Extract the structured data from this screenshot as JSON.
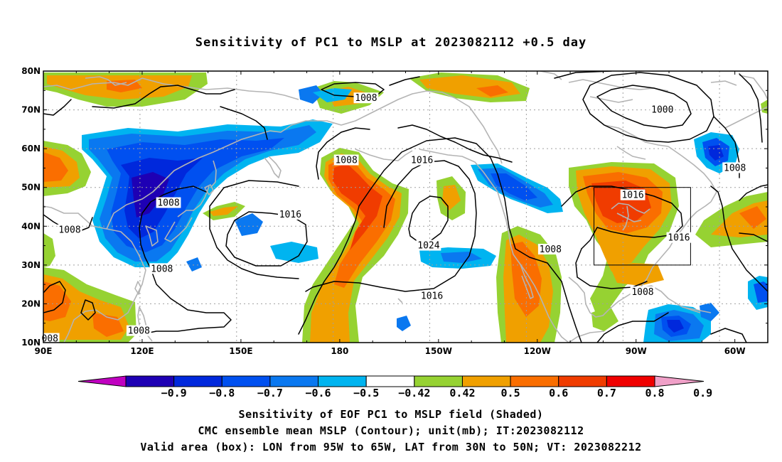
{
  "title": "Sensitivity of PC1 to MSLP at 2023082112 +0.5 day",
  "map": {
    "lon_ticks": [
      "90E",
      "120E",
      "150E",
      "180",
      "150W",
      "120W",
      "90W",
      "60W"
    ],
    "lat_ticks": [
      "80N",
      "70N",
      "60N",
      "50N",
      "40N",
      "30N",
      "20N",
      "10N"
    ],
    "contour_labels": [
      {
        "label": "1008",
        "lon": -172,
        "lat": 73
      },
      {
        "label": "1000",
        "lon": -82,
        "lat": 70
      },
      {
        "label": "1008",
        "lon": -178,
        "lat": 57
      },
      {
        "label": "1016",
        "lon": -155,
        "lat": 57
      },
      {
        "label": "1008",
        "lon": -60,
        "lat": 55
      },
      {
        "label": "1008",
        "lon": 128,
        "lat": 46
      },
      {
        "label": "1016",
        "lon": -91,
        "lat": 48
      },
      {
        "label": "1016",
        "lon": 165,
        "lat": 43
      },
      {
        "label": "1008",
        "lon": 98,
        "lat": 39
      },
      {
        "label": "1024",
        "lon": -153,
        "lat": 35
      },
      {
        "label": "1016",
        "lon": -77,
        "lat": 37
      },
      {
        "label": "1008",
        "lon": -116,
        "lat": 34
      },
      {
        "label": "1008",
        "lon": 126,
        "lat": 29
      },
      {
        "label": "1008",
        "lon": -88,
        "lat": 23
      },
      {
        "label": "1016",
        "lon": -152,
        "lat": 22
      },
      {
        "label": "1008",
        "lon": 119,
        "lat": 13
      },
      {
        "label": "008",
        "lon": 92,
        "lat": 11
      }
    ],
    "valid_box": {
      "lon_west": -95,
      "lon_east": -65,
      "lat_south": 30,
      "lat_north": 50
    },
    "colors": {
      "land_outline": "#b4b4b4",
      "contour": "#000000",
      "grid": "#a0a0a0"
    }
  },
  "colorbar": {
    "labels": [
      "−0.9",
      "−0.8",
      "−0.7",
      "−0.6",
      "−0.5",
      "−0.42",
      "0.42",
      "0.5",
      "0.6",
      "0.7",
      "0.8",
      "0.9"
    ],
    "colors": [
      "#c000c0",
      "#1e00b4",
      "#0028dc",
      "#0050f0",
      "#0a78f0",
      "#00b4f0",
      "#ffffff",
      "#96d232",
      "#f0a000",
      "#fa6e00",
      "#f03c00",
      "#f00000",
      "#f0a0c8"
    ]
  },
  "footer": {
    "line1": "Sensitivity of EOF PC1 to MSLP field (Shaded)",
    "line2": "CMC ensemble mean MSLP (Contour); unit(mb); IT:2023082112",
    "line3": "Valid area (box): LON from 95W to 65W, LAT from 30N to 50N; VT: 2023082212"
  }
}
